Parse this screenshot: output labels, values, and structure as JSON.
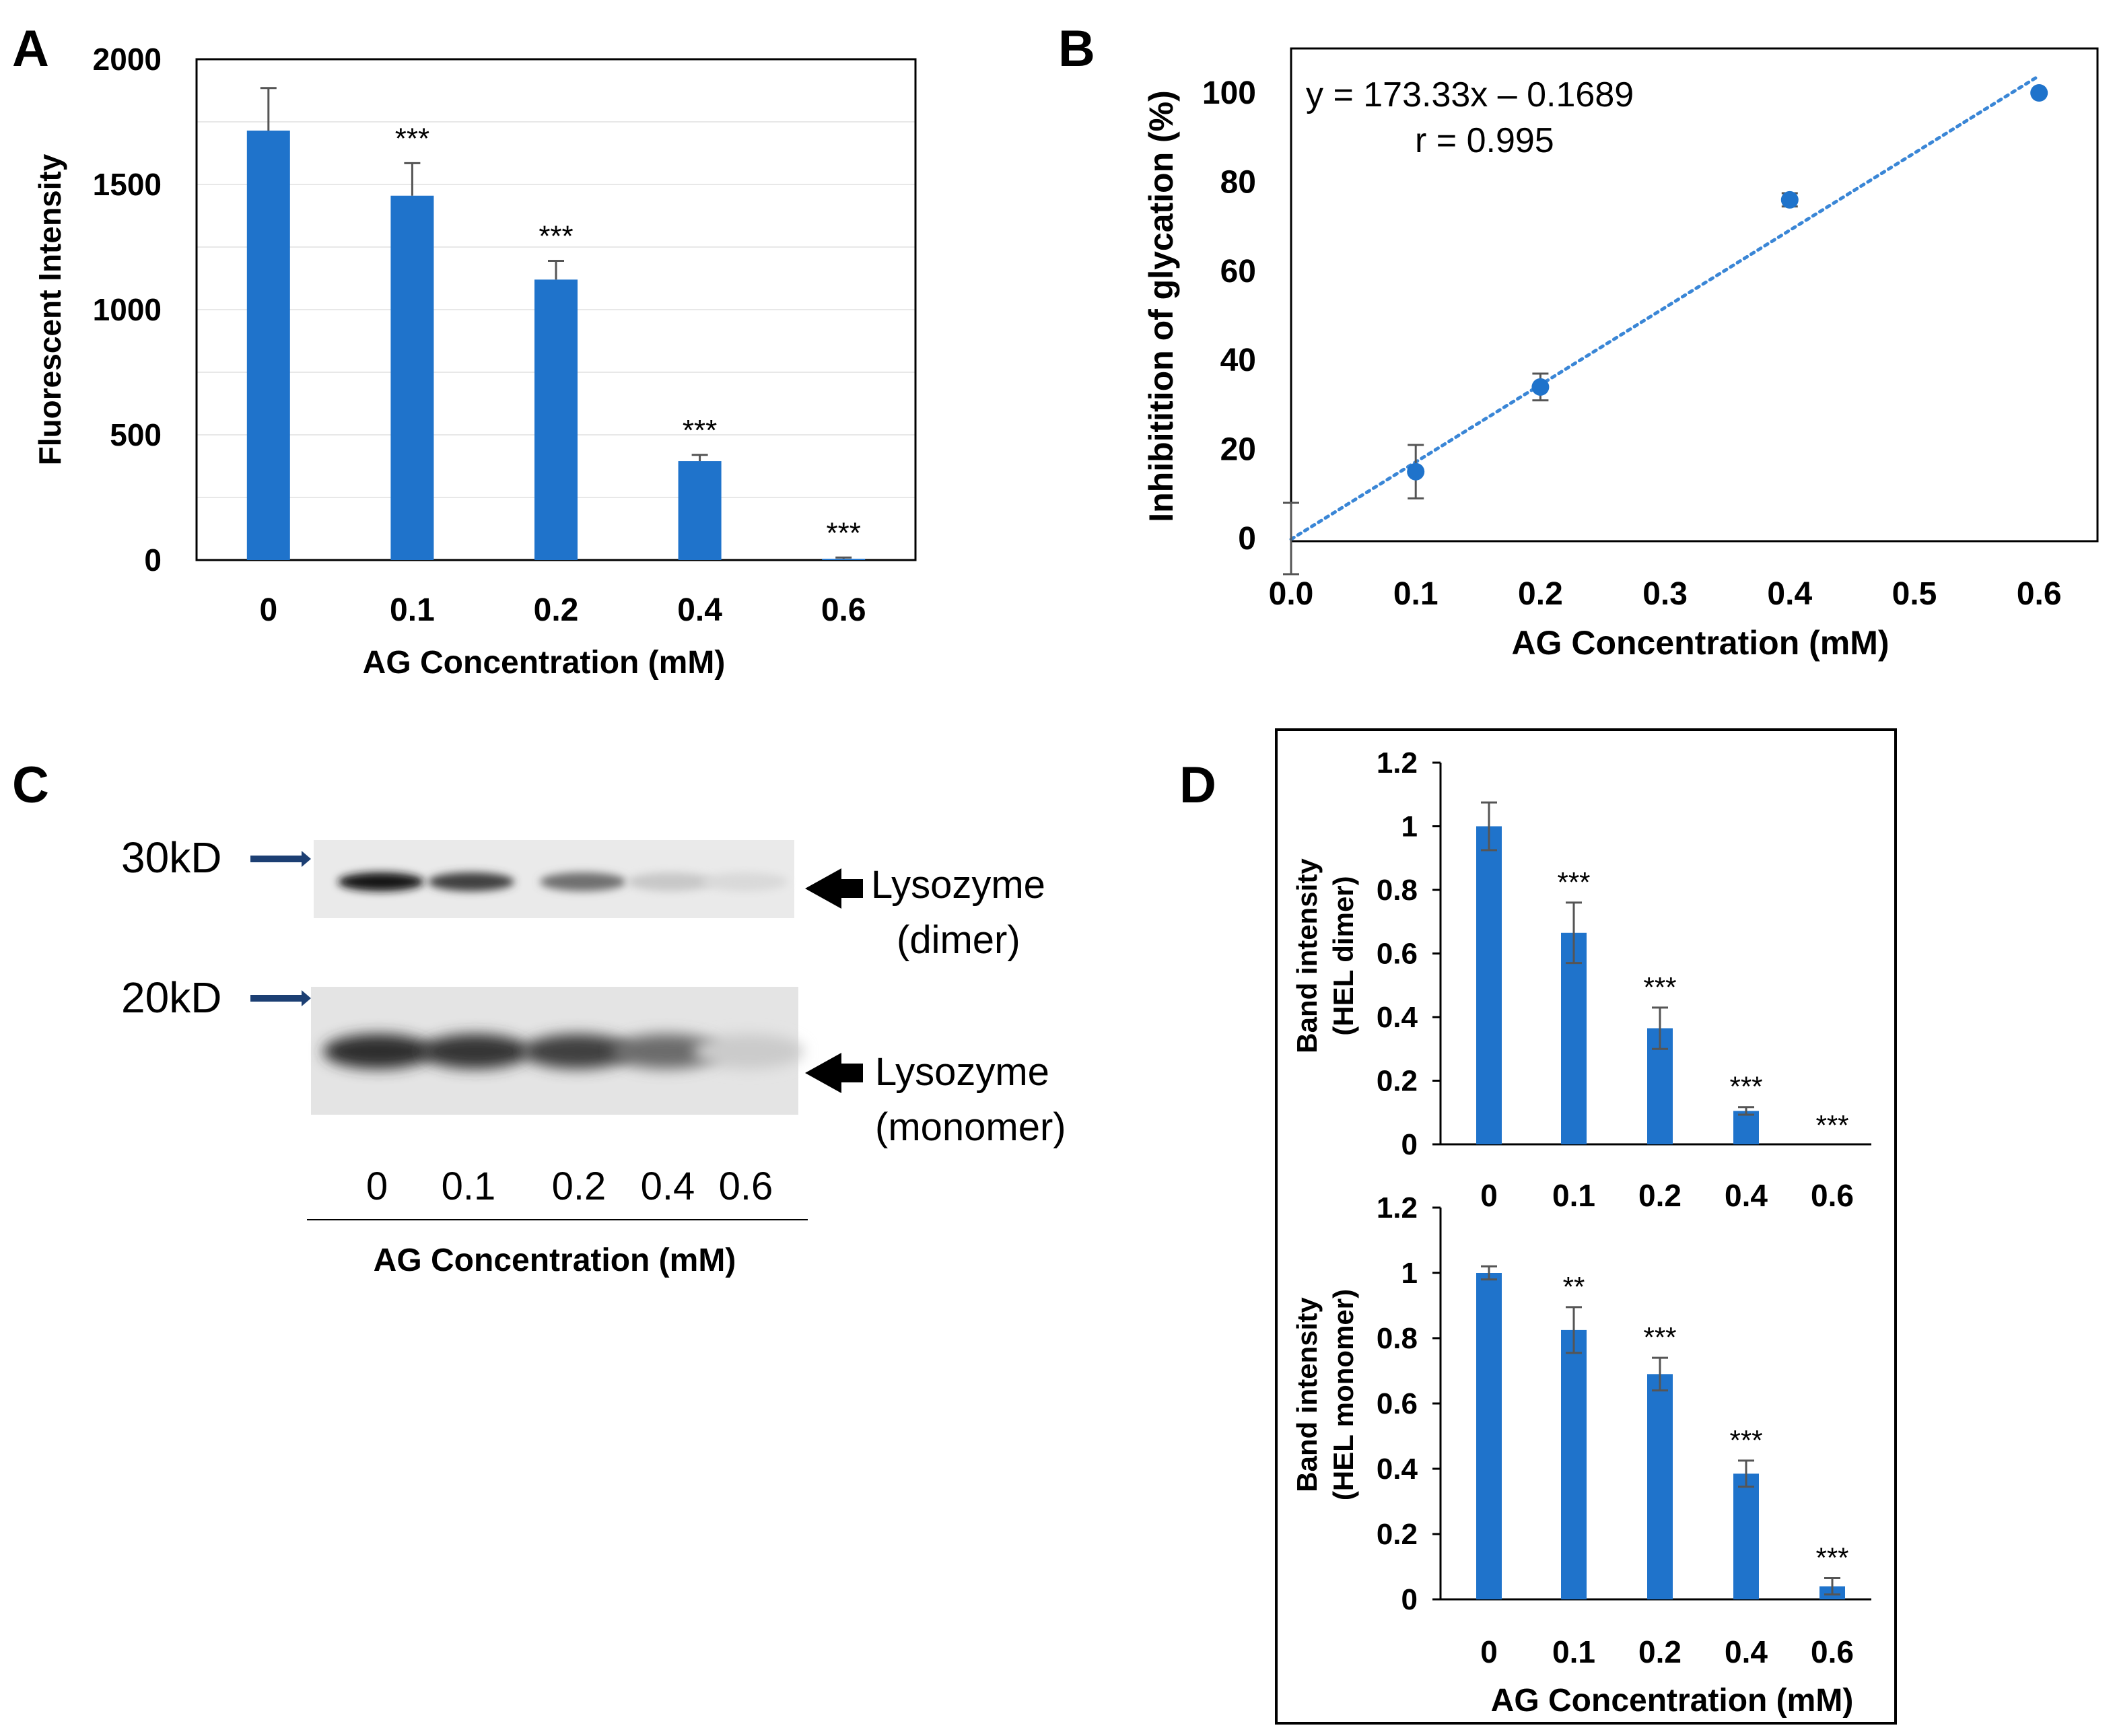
{
  "colors": {
    "bar": "#1F73CB",
    "point": "#1F73CB",
    "trend": "#3A86D6",
    "error": "#555555",
    "axis": "#000000",
    "grid": "#E8E8E8"
  },
  "chart_data": [
    {
      "panel": "A",
      "type": "bar",
      "categories": [
        "0",
        "0.1",
        "0.2",
        "0.4",
        "0.6"
      ],
      "values": [
        1715,
        1455,
        1120,
        395,
        5
      ],
      "errors": [
        170,
        130,
        75,
        25,
        5
      ],
      "significance": [
        "",
        "***",
        "***",
        "***",
        "***"
      ],
      "ylim": [
        0,
        2000
      ],
      "yticks": [
        "0",
        "500",
        "1000",
        "1500",
        "2000"
      ],
      "ytick_values": [
        0,
        500,
        1000,
        1500,
        2000
      ],
      "ylabel": "Fluorescent Intensity",
      "xlabel": "AG Concentration (mM)",
      "grid": true
    },
    {
      "panel": "B",
      "type": "scatter",
      "x": [
        0.0,
        0.1,
        0.2,
        0.4,
        0.6
      ],
      "y": [
        0,
        15,
        34,
        76,
        100
      ],
      "errors": [
        8,
        6,
        3,
        1.5,
        0.5
      ],
      "xlim": [
        0,
        0.65
      ],
      "ylim": [
        0,
        110
      ],
      "xticks": [
        "0.0",
        "0.1",
        "0.2",
        "0.3",
        "0.4",
        "0.5",
        "0.6"
      ],
      "xtick_values": [
        0,
        0.1,
        0.2,
        0.3,
        0.4,
        0.5,
        0.6
      ],
      "yticks": [
        "0",
        "20",
        "40",
        "60",
        "80",
        "100"
      ],
      "ytick_values": [
        0,
        20,
        40,
        60,
        80,
        100
      ],
      "trendline": {
        "slope": 173.33,
        "intercept": -0.1689,
        "x_range": [
          0,
          0.6
        ]
      },
      "equation": "y = 173.33x – 0.1689",
      "r_text": "r = 0.995",
      "ylabel": "Inhibitition of glycation (%)",
      "xlabel": "AG Concentration (mM)"
    },
    {
      "panel": "D",
      "subpanel": "dimer",
      "type": "bar",
      "categories": [
        "0",
        "0.1",
        "0.2",
        "0.4",
        "0.6"
      ],
      "values": [
        1.0,
        0.665,
        0.365,
        0.105,
        0.0
      ],
      "errors": [
        0.075,
        0.095,
        0.065,
        0.012,
        0.0
      ],
      "significance": [
        "",
        "***",
        "***",
        "***",
        "***"
      ],
      "ylim": [
        0,
        1.2
      ],
      "yticks": [
        "0",
        "0.2",
        "0.4",
        "0.6",
        "0.8",
        "1",
        "1.2"
      ],
      "ytick_values": [
        0,
        0.2,
        0.4,
        0.6,
        0.8,
        1.0,
        1.2
      ],
      "ylabel_line1": "Band intensity",
      "ylabel_line2": "(HEL dimer)"
    },
    {
      "panel": "D",
      "subpanel": "monomer",
      "type": "bar",
      "categories": [
        "0",
        "0.1",
        "0.2",
        "0.4",
        "0.6"
      ],
      "values": [
        1.0,
        0.825,
        0.69,
        0.385,
        0.04
      ],
      "errors": [
        0.02,
        0.07,
        0.05,
        0.04,
        0.025
      ],
      "significance": [
        "",
        "**",
        "***",
        "***",
        "***"
      ],
      "ylim": [
        0,
        1.2
      ],
      "yticks": [
        "0",
        "0.2",
        "0.4",
        "0.6",
        "0.8",
        "1",
        "1.2"
      ],
      "ytick_values": [
        0,
        0.2,
        0.4,
        0.6,
        0.8,
        1.0,
        1.2
      ],
      "ylabel_line1": "Band intensity",
      "ylabel_line2": "(HEL monomer)",
      "xlabel": "AG Concentration  (mM)"
    }
  ],
  "blot": {
    "marker_30": "30kD",
    "marker_20": "20kD",
    "dimer_line1": "Lysozyme",
    "dimer_line2": "(dimer)",
    "monomer_line1": "Lysozyme",
    "monomer_line2": "(monomer)",
    "lanes": [
      "0",
      "0.1",
      "0.2",
      "0.4",
      "0.6"
    ],
    "dimer_band_intensity": [
      1.0,
      0.78,
      0.55,
      0.12,
      0.04
    ],
    "monomer_band_intensity": [
      1.0,
      0.95,
      0.9,
      0.65,
      0.12
    ],
    "xlabel": "AG Concentration (mM)"
  },
  "labels": {
    "A": "A",
    "B": "B",
    "C": "C",
    "D": "D"
  }
}
